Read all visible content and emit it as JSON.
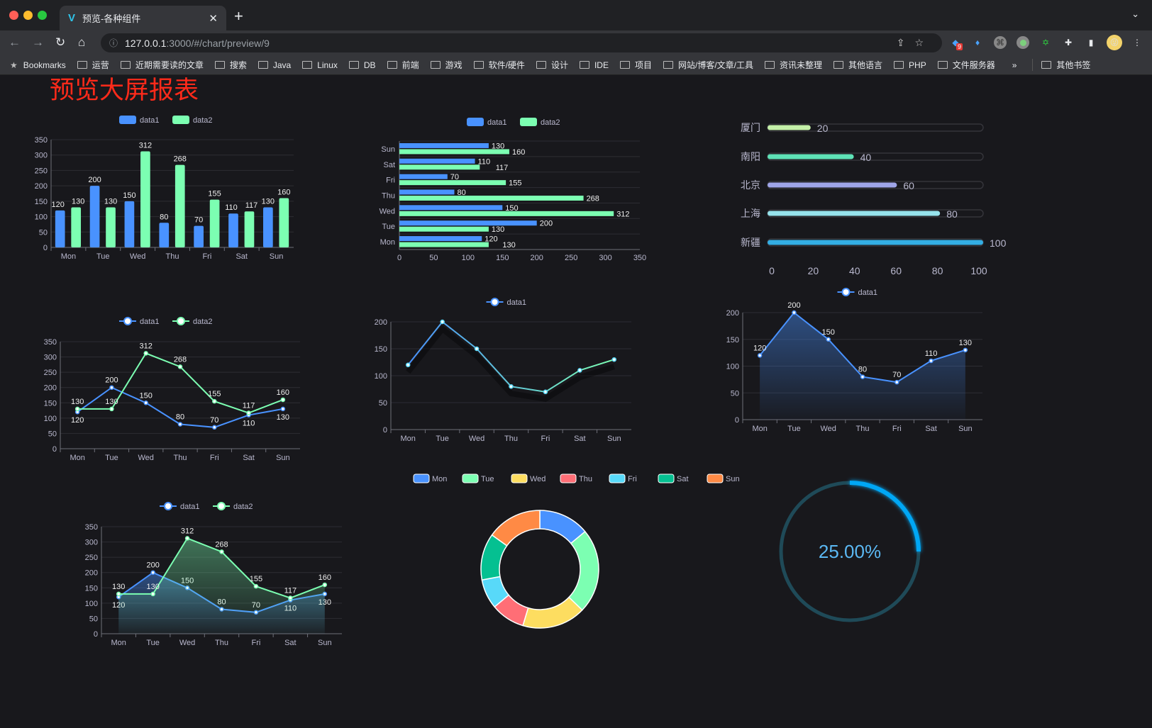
{
  "browser": {
    "tab_title": "预览-各种组件",
    "url_host": "127.0.0.1",
    "url_path": ":3000/#/chart/preview/9",
    "extension_badge": "9",
    "bookmarks_label": "Bookmarks",
    "bookmarks": [
      "运营",
      "近期需要读的文章",
      "搜索",
      "Java",
      "Linux",
      "DB",
      "前端",
      "游戏",
      "软件/硬件",
      "设计",
      "IDE",
      "项目",
      "网站/博客/文章/工具",
      "资讯未整理",
      "其他语言",
      "PHP",
      "文件服务器"
    ],
    "overflow": "»",
    "other_bookmarks": "其他书签"
  },
  "page": {
    "title": "预览大屏报表"
  },
  "colors": {
    "blue": "#4992ff",
    "green": "#7cffb2",
    "yellow": "#fddd60",
    "red": "#ff6e76",
    "cyan": "#58d9f9",
    "teal": "#05c091",
    "orange": "#ff8a45",
    "title": "#ff2a1a",
    "background": "#18181c"
  },
  "chart_data": [
    {
      "id": "bar",
      "type": "bar",
      "categories": [
        "Mon",
        "Tue",
        "Wed",
        "Thu",
        "Fri",
        "Sat",
        "Sun"
      ],
      "series": [
        {
          "name": "data1",
          "values": [
            120,
            200,
            150,
            80,
            70,
            110,
            130
          ]
        },
        {
          "name": "data2",
          "values": [
            130,
            130,
            312,
            268,
            155,
            117,
            160
          ]
        }
      ],
      "ylim": [
        0,
        350
      ],
      "yticks": [
        0,
        50,
        100,
        150,
        200,
        250,
        300,
        350
      ],
      "legend": "top",
      "grid": true
    },
    {
      "id": "hbar",
      "type": "bar",
      "orientation": "horizontal",
      "categories": [
        "Mon",
        "Tue",
        "Wed",
        "Thu",
        "Fri",
        "Sat",
        "Sun"
      ],
      "series": [
        {
          "name": "data1",
          "values": [
            120,
            200,
            150,
            80,
            70,
            110,
            130
          ]
        },
        {
          "name": "data2",
          "values": [
            130,
            130,
            312,
            268,
            155,
            117,
            160
          ]
        }
      ],
      "xlim": [
        0,
        350
      ],
      "xticks": [
        0,
        50,
        100,
        150,
        200,
        250,
        300,
        350
      ],
      "legend": "top",
      "grid": true
    },
    {
      "id": "progress",
      "type": "bar",
      "orientation": "horizontal",
      "categories": [
        "厦门",
        "南阳",
        "北京",
        "上海",
        "新疆"
      ],
      "values": [
        20,
        40,
        60,
        80,
        100
      ],
      "colors": [
        "#c4f0a8",
        "#5ee2b6",
        "#9fa5e8",
        "#96e3ec",
        "#33aee4"
      ],
      "xlim": [
        0,
        100
      ],
      "xticks": [
        0,
        20,
        40,
        60,
        80,
        100
      ]
    },
    {
      "id": "line2",
      "type": "line",
      "categories": [
        "Mon",
        "Tue",
        "Wed",
        "Thu",
        "Fri",
        "Sat",
        "Sun"
      ],
      "series": [
        {
          "name": "data1",
          "values": [
            120,
            200,
            150,
            80,
            70,
            110,
            130
          ]
        },
        {
          "name": "data2",
          "values": [
            130,
            130,
            312,
            268,
            155,
            117,
            160
          ]
        }
      ],
      "ylim": [
        0,
        350
      ],
      "yticks": [
        0,
        50,
        100,
        150,
        200,
        250,
        300,
        350
      ],
      "legend": "top",
      "grid": true
    },
    {
      "id": "line1",
      "type": "line",
      "categories": [
        "Mon",
        "Tue",
        "Wed",
        "Thu",
        "Fri",
        "Sat",
        "Sun"
      ],
      "series": [
        {
          "name": "data1",
          "values": [
            120,
            200,
            150,
            80,
            70,
            110,
            130
          ]
        }
      ],
      "ylim": [
        0,
        200
      ],
      "yticks": [
        0,
        50,
        100,
        150,
        200
      ],
      "legend": "top",
      "grid": true
    },
    {
      "id": "area1",
      "type": "area",
      "categories": [
        "Mon",
        "Tue",
        "Wed",
        "Thu",
        "Fri",
        "Sat",
        "Sun"
      ],
      "series": [
        {
          "name": "data1",
          "values": [
            120,
            200,
            150,
            80,
            70,
            110,
            130
          ]
        }
      ],
      "ylim": [
        0,
        200
      ],
      "yticks": [
        0,
        50,
        100,
        150,
        200
      ],
      "legend": "top",
      "grid": true
    },
    {
      "id": "area2",
      "type": "area",
      "categories": [
        "Mon",
        "Tue",
        "Wed",
        "Thu",
        "Fri",
        "Sat",
        "Sun"
      ],
      "series": [
        {
          "name": "data1",
          "values": [
            120,
            200,
            150,
            80,
            70,
            110,
            130
          ]
        },
        {
          "name": "data2",
          "values": [
            130,
            130,
            312,
            268,
            155,
            117,
            160
          ]
        }
      ],
      "ylim": [
        0,
        350
      ],
      "yticks": [
        0,
        50,
        100,
        150,
        200,
        250,
        300,
        350
      ],
      "legend": "top",
      "grid": true
    },
    {
      "id": "pie",
      "type": "pie",
      "categories": [
        "Mon",
        "Tue",
        "Wed",
        "Thu",
        "Fri",
        "Sat",
        "Sun"
      ],
      "values": [
        120,
        200,
        150,
        80,
        70,
        110,
        130
      ],
      "legend": "top"
    },
    {
      "id": "gauge",
      "type": "pie",
      "value": 0.25,
      "label": "25.00%"
    }
  ]
}
